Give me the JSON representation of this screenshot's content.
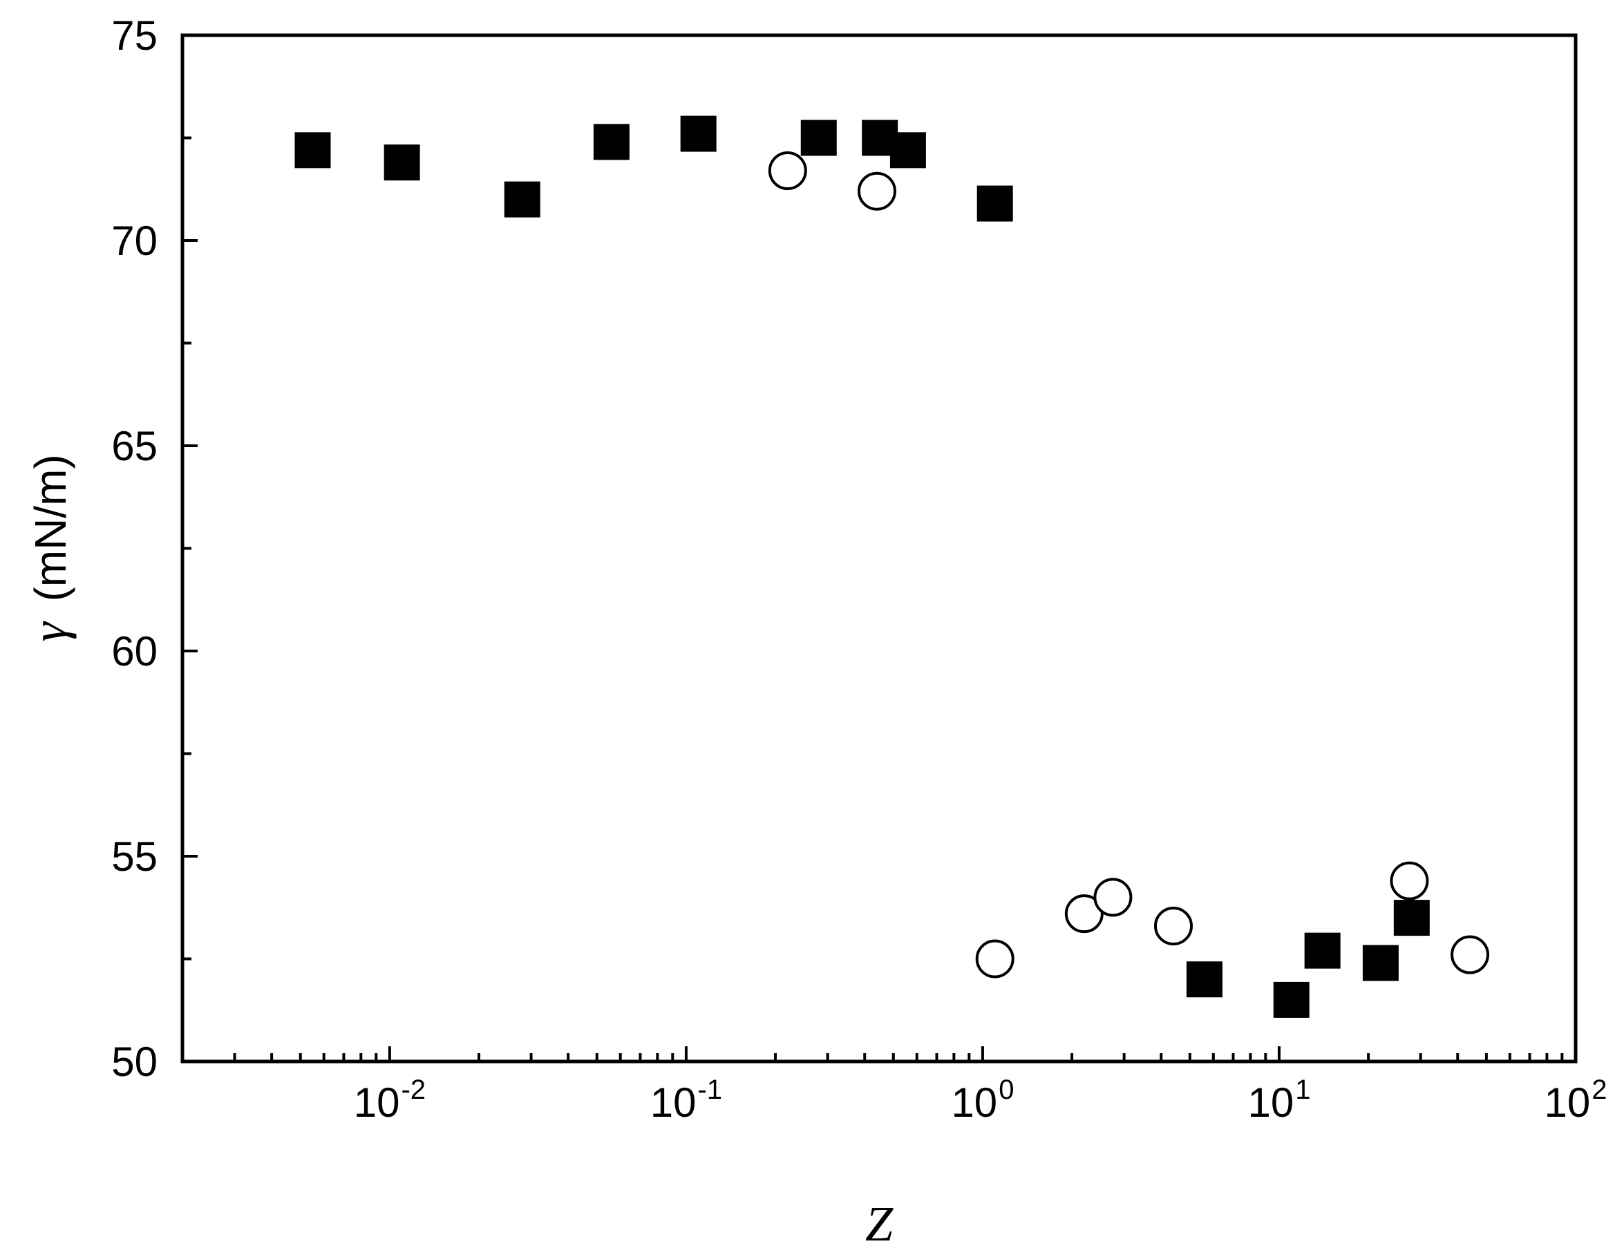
{
  "chart_data": {
    "type": "scatter",
    "x_scale": "log",
    "xlim": [
      0.002,
      100
    ],
    "ylim": [
      50,
      75
    ],
    "x_major_ticks": [
      0.01,
      0.1,
      1,
      10,
      100
    ],
    "x_tick_labels": [
      {
        "base": "10",
        "exp": "-2"
      },
      {
        "base": "10",
        "exp": "-1"
      },
      {
        "base": "10",
        "exp": "0"
      },
      {
        "base": "10",
        "exp": "1"
      },
      {
        "base": "10",
        "exp": "2"
      }
    ],
    "y_major_ticks": [
      50,
      55,
      60,
      65,
      70,
      75
    ],
    "y_tick_labels": [
      "50",
      "55",
      "60",
      "65",
      "70",
      "75"
    ],
    "y_minor_ticks": [
      52.5,
      57.5,
      62.5,
      67.5,
      72.5
    ],
    "xlabel": "Z",
    "ylabel_symbol": "γ",
    "ylabel_unit": "(mN/m)",
    "grid": false,
    "legend": "none",
    "series": [
      {
        "marker": "filled-square",
        "color": "#000000",
        "points": [
          {
            "x": 0.0055,
            "y": 72.2
          },
          {
            "x": 0.011,
            "y": 71.9
          },
          {
            "x": 0.028,
            "y": 71.0
          },
          {
            "x": 0.056,
            "y": 72.4
          },
          {
            "x": 0.11,
            "y": 72.6
          },
          {
            "x": 0.28,
            "y": 72.5
          },
          {
            "x": 0.45,
            "y": 72.5
          },
          {
            "x": 0.56,
            "y": 72.2
          },
          {
            "x": 1.1,
            "y": 70.9
          },
          {
            "x": 5.6,
            "y": 52.0
          },
          {
            "x": 11.0,
            "y": 51.5
          },
          {
            "x": 14.0,
            "y": 52.7
          },
          {
            "x": 22.0,
            "y": 52.4
          },
          {
            "x": 28.0,
            "y": 53.5
          }
        ]
      },
      {
        "marker": "open-circle",
        "color": "#000000",
        "points": [
          {
            "x": 0.22,
            "y": 71.7
          },
          {
            "x": 0.44,
            "y": 71.2
          },
          {
            "x": 1.1,
            "y": 52.5
          },
          {
            "x": 2.2,
            "y": 53.6
          },
          {
            "x": 2.75,
            "y": 54.0
          },
          {
            "x": 4.4,
            "y": 53.3
          },
          {
            "x": 27.5,
            "y": 54.4
          },
          {
            "x": 44.0,
            "y": 52.6
          }
        ]
      }
    ]
  }
}
